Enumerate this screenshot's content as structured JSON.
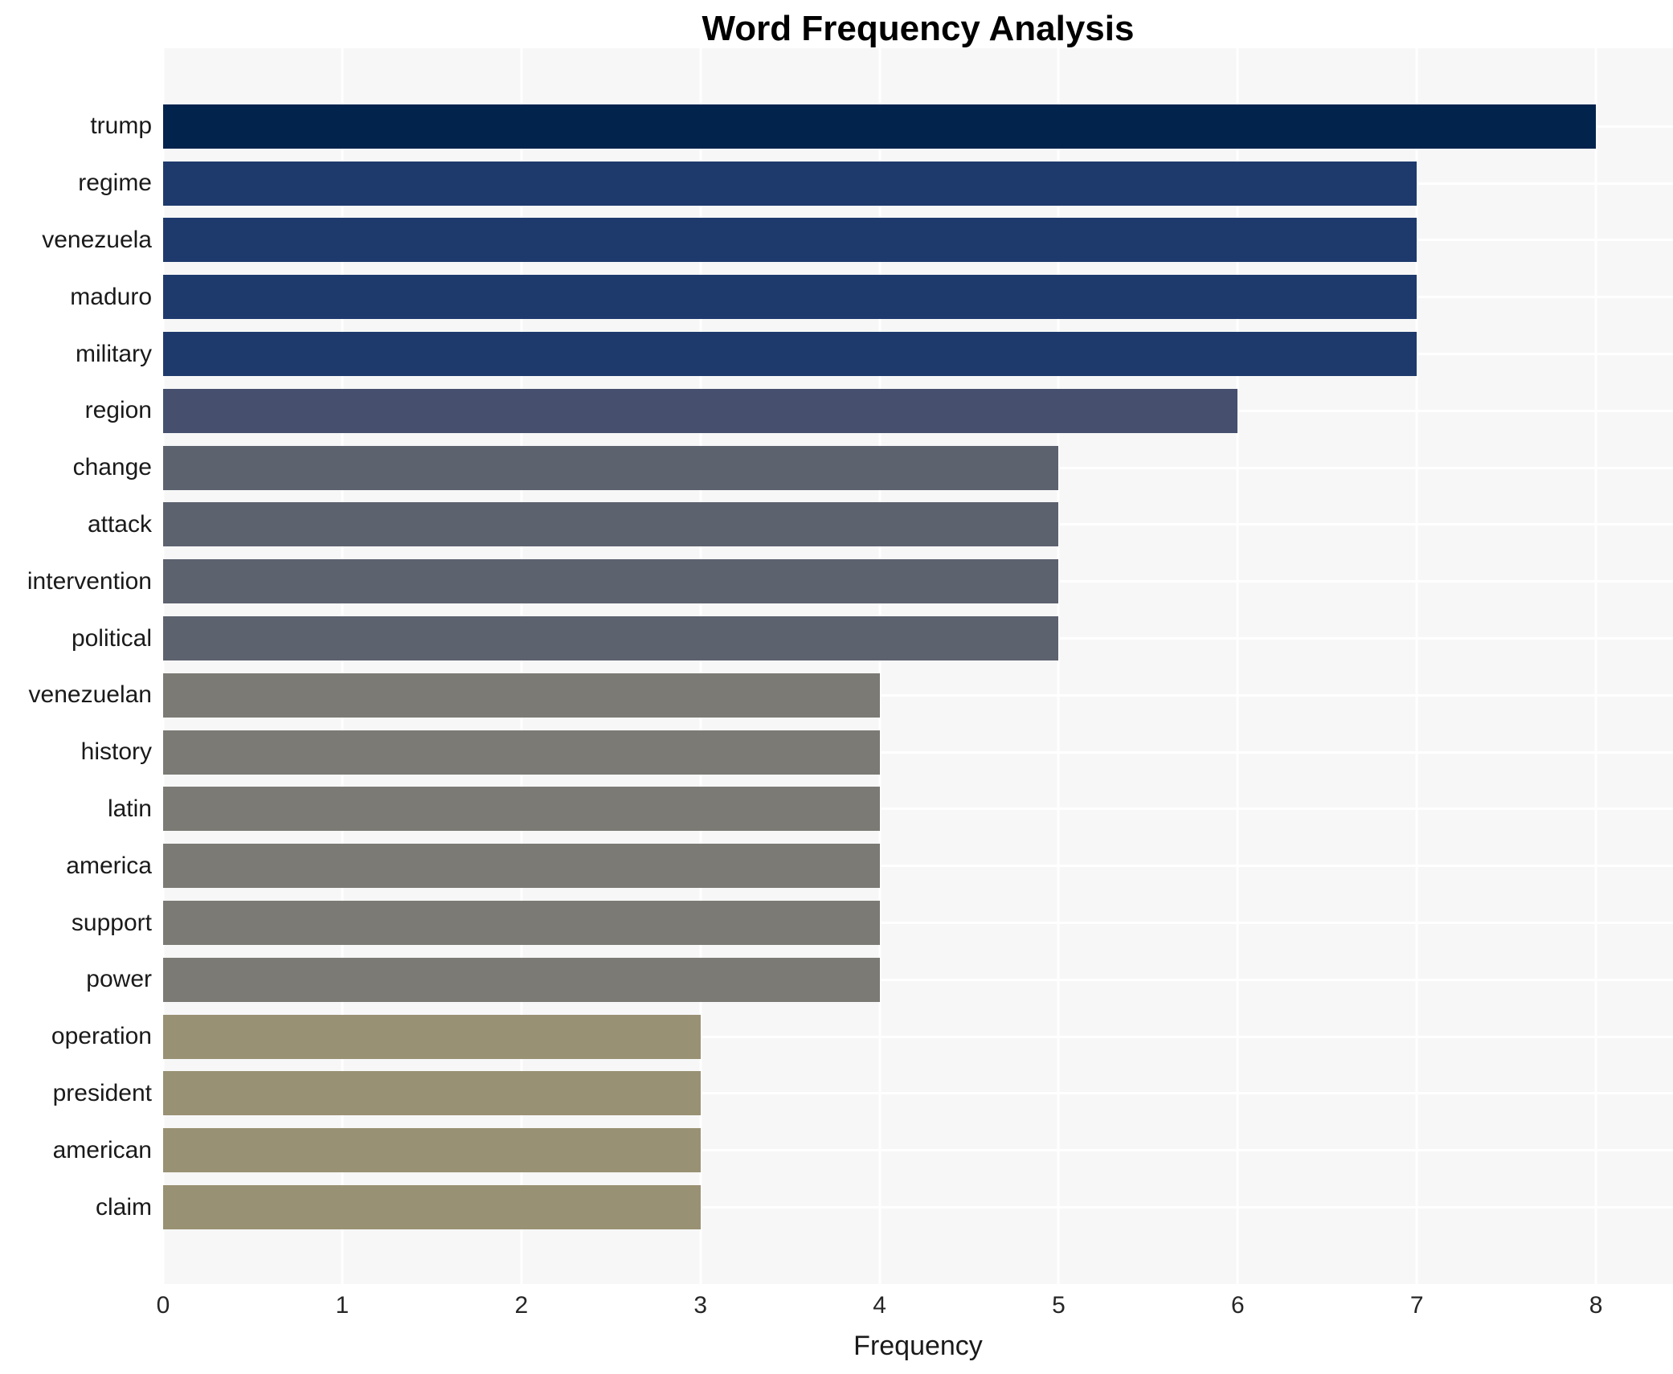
{
  "title": "Word Frequency Analysis",
  "xlabel": "Frequency",
  "chart_data": {
    "type": "bar",
    "orientation": "horizontal",
    "title": "Word Frequency Analysis",
    "xlabel": "Frequency",
    "ylabel": "",
    "categories": [
      "trump",
      "regime",
      "venezuela",
      "maduro",
      "military",
      "region",
      "change",
      "attack",
      "intervention",
      "political",
      "venezuelan",
      "history",
      "latin",
      "america",
      "support",
      "power",
      "operation",
      "president",
      "american",
      "claim"
    ],
    "values": [
      8,
      7,
      7,
      7,
      7,
      6,
      5,
      5,
      5,
      5,
      4,
      4,
      4,
      4,
      4,
      4,
      3,
      3,
      3,
      3
    ],
    "xticks": [
      0,
      1,
      2,
      3,
      4,
      5,
      6,
      7,
      8
    ],
    "xlim": [
      0,
      8.43
    ],
    "grid": true,
    "legend_position": "none",
    "plot_background": "#f7f7f7",
    "grid_color": "#ffffff",
    "colors_by_value": {
      "8": "#02234c",
      "7": "#1e3a6d",
      "6": "#46506e",
      "5": "#5d626f",
      "4": "#7b7a74",
      "3": "#999173"
    }
  }
}
